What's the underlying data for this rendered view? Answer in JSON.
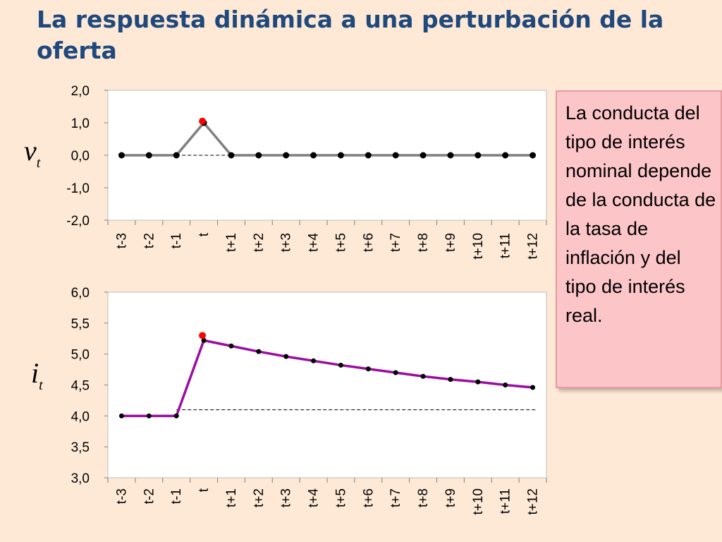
{
  "title": "La respuesta dinámica a una perturbación de la oferta",
  "note": "La conducta del tipo de interés nominal depende de la conducta de la tasa de inflación y del tipo de interés real.",
  "colors": {
    "background": "#fde9d6",
    "title": "#1f497d",
    "note_bg": "#fcc5c8",
    "series_top": "#7f7f7f",
    "series_bottom": "#9b0ea0",
    "marker": "#000000",
    "shock_marker": "#ff0000"
  },
  "chart_data": [
    {
      "type": "line",
      "var_main": "v",
      "var_sub": "t",
      "categories": [
        "t-3",
        "t-2",
        "t-1",
        "t",
        "t+1",
        "t+2",
        "t+3",
        "t+4",
        "t+5",
        "t+6",
        "t+7",
        "t+8",
        "t+9",
        "t+10",
        "t+11",
        "t+12"
      ],
      "series": [
        {
          "values": [
            0,
            0,
            0,
            1,
            0,
            0,
            0,
            0,
            0,
            0,
            0,
            0,
            0,
            0,
            0,
            0
          ]
        }
      ],
      "shock_point": {
        "category": "t",
        "value": 1.05
      },
      "baseline": {
        "value": 0.0,
        "from": "t-1",
        "to": "t+1"
      },
      "ylim": [
        -2.0,
        2.0
      ],
      "yticks": [
        "2,0",
        "1,0",
        "0,0",
        "-1,0",
        "-2,0"
      ],
      "ytick_values": [
        2.0,
        1.0,
        0.0,
        -1.0,
        -2.0
      ],
      "grid": false
    },
    {
      "type": "line",
      "var_main": "i",
      "var_sub": "t",
      "categories": [
        "t-3",
        "t-2",
        "t-1",
        "t",
        "t+1",
        "t+2",
        "t+3",
        "t+4",
        "t+5",
        "t+6",
        "t+7",
        "t+8",
        "t+9",
        "t+10",
        "t+11",
        "t+12"
      ],
      "series": [
        {
          "values": [
            4.0,
            4.0,
            4.0,
            5.22,
            5.13,
            5.04,
            4.96,
            4.89,
            4.82,
            4.76,
            4.7,
            4.64,
            4.59,
            4.55,
            4.5,
            4.46
          ]
        }
      ],
      "shock_point": {
        "category": "t",
        "value": 5.3
      },
      "baseline": {
        "value": 4.1,
        "from": "t-1",
        "to": "t+12"
      },
      "ylim": [
        3.0,
        6.0
      ],
      "yticks": [
        "6,0",
        "5,5",
        "5,0",
        "4,5",
        "4,0",
        "3,5",
        "3,0"
      ],
      "ytick_values": [
        6.0,
        5.5,
        5.0,
        4.5,
        4.0,
        3.5,
        3.0
      ],
      "grid": false
    }
  ]
}
